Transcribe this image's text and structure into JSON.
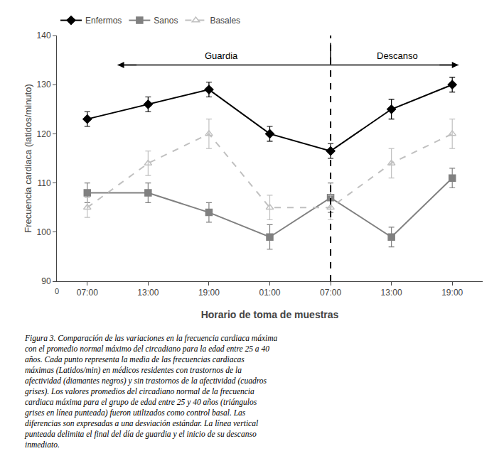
{
  "chart_data": {
    "type": "line",
    "categories": [
      "07:00",
      "13:00",
      "19:00",
      "01:00",
      "07:00",
      "13:00",
      "19:00"
    ],
    "series": [
      {
        "name": "Enfermos",
        "color": "#000000",
        "marker": "diamond",
        "line_style": "solid",
        "values": [
          123,
          126,
          129,
          120,
          116.5,
          125,
          130
        ],
        "errors": [
          1.5,
          1.5,
          1.5,
          1.5,
          1.5,
          2.0,
          1.5
        ]
      },
      {
        "name": "Sanos",
        "color": "#808080",
        "marker": "square",
        "line_style": "solid",
        "values": [
          108,
          108,
          104,
          99,
          107,
          99,
          111
        ],
        "errors": [
          2.0,
          2.0,
          2.0,
          2.5,
          3.0,
          2.0,
          2.0
        ]
      },
      {
        "name": "Basales",
        "color": "#c0c0c0",
        "marker": "triangle-open",
        "line_style": "dash",
        "values": [
          105,
          114,
          120,
          105,
          105,
          114,
          120
        ],
        "errors": [
          2.0,
          2.5,
          3.0,
          2.5,
          2.5,
          3.0,
          3.0
        ]
      }
    ],
    "xlabel": "Horario de toma de muestras",
    "ylabel": "Frecuencia cardiaca (latidos/minuto)",
    "ylim": [
      90,
      140
    ],
    "yticks": [
      90,
      100,
      110,
      120,
      130,
      140
    ],
    "grid": false,
    "legend": "upper left",
    "vline_index": 4,
    "annotations": [
      "Guardia",
      "Descanso",
      "0"
    ],
    "caption": "Figura 3. Comparación de las variaciones en la frecuencia cardiaca máxima\ncon el promedio normal máximo del circadiano para la edad entre 25 a 40\naños. Cada punto representa la media de las frecuencias cardiacas\nmáximas (Latidos/min) en médicos residentes con trastornos de la\nafectividad (diamantes negros) y sin trastornos de la afectividad (cuadros\ngrises). Los valores promedios del circadiano normal de la frecuencia\ncardiaca máxima para el grupo de edad entre 25 y 40 años (triángulos\ngrises en línea punteada) fueron utilizados como control basal. Las\ndiferencias son expresadas a una desviación estándar. La línea vertical\npunteada delimita el final del día de guardia y el inicio de su descanso\ninmediato."
  }
}
